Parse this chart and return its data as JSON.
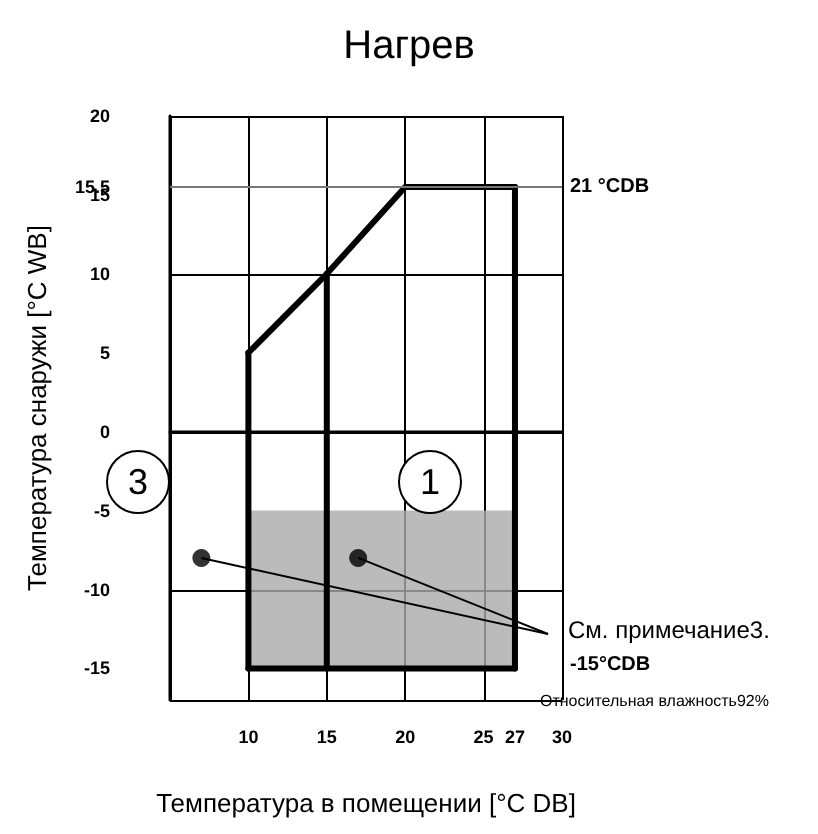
{
  "chart_data": {
    "type": "line",
    "title": "Нагрев",
    "xlabel": "Температура в помещении [°C DB]",
    "ylabel": "Температура снаружи [°C WB]",
    "xlim": [
      5,
      30
    ],
    "xticks": [
      10,
      15,
      20,
      25,
      27,
      30
    ],
    "ylim": [
      -17,
      20
    ],
    "yticks": [
      -15,
      -10,
      -5,
      0,
      5,
      10,
      15,
      {
        "value": 15.5,
        "label": "15.5"
      },
      20
    ],
    "grid": true,
    "marker": "none",
    "line_style": "solid",
    "series": [
      {
        "color": "#000000",
        "x": [
          10,
          15,
          20,
          27
        ],
        "values": [
          5,
          10,
          15.5,
          15.5
        ]
      },
      {
        "color": "#000000",
        "x": [
          10,
          27
        ],
        "values": [
          -15,
          -15
        ]
      },
      {
        "color": "#000000",
        "x": [
          10,
          10
        ],
        "values": [
          5,
          -15
        ]
      },
      {
        "color": "#000000",
        "x": [
          15,
          15
        ],
        "values": [
          10,
          -15
        ]
      },
      {
        "color": "#000000",
        "x": [
          27,
          27
        ],
        "values": [
          15.5,
          -15
        ]
      },
      {
        "type": "scatter",
        "color": "#000000",
        "marker": "circle",
        "x": [
          7,
          17
        ],
        "values": [
          -8,
          -8
        ]
      }
    ],
    "ref_lines": [
      {
        "axis": "y",
        "value": 15.5,
        "label": "21 °CDB",
        "color": "#777777"
      }
    ],
    "bands": [
      {
        "axis": "y",
        "from": -15,
        "to": -5,
        "color": "#aaaaaa"
      }
    ],
    "annotations": [
      "3",
      "1",
      "См. примечание3.",
      "-15°CDB",
      "Относительная влажность92%"
    ]
  }
}
